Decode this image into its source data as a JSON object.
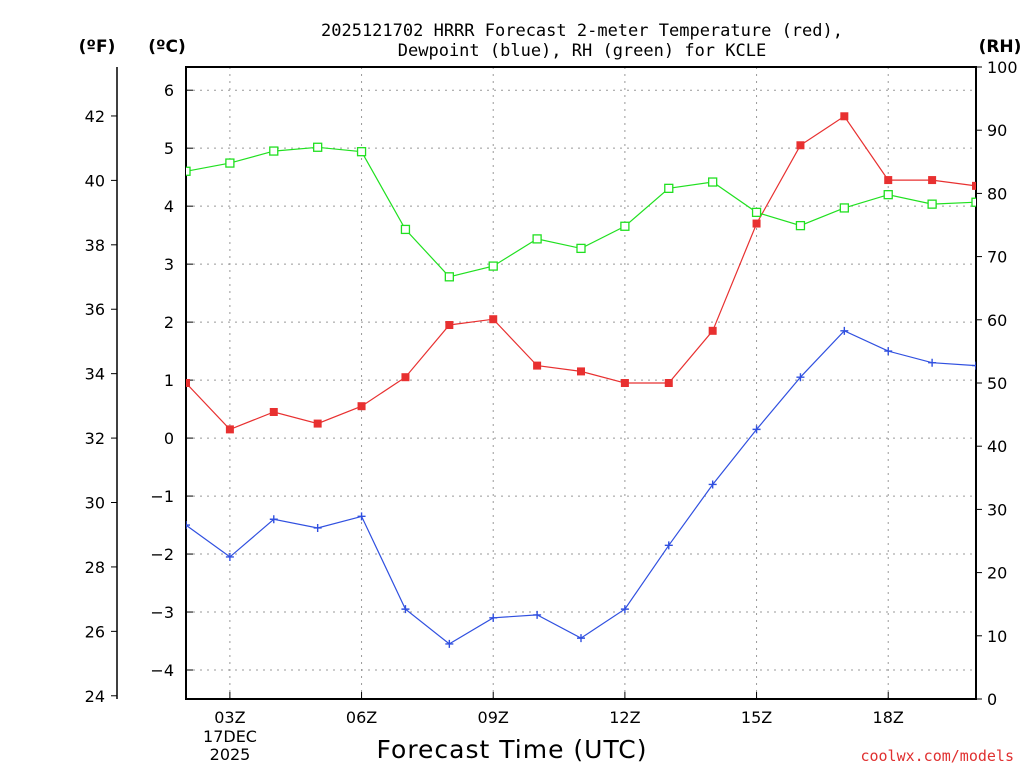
{
  "chart_data": {
    "type": "line",
    "title_line1": "2025121702 HRRR Forecast 2-meter Temperature (red),",
    "title_line2": "Dewpoint (blue), RH (green) for KCLE",
    "left_unit_f": "(ºF)",
    "left_unit_c": "(ºC)",
    "right_unit": "(RH)",
    "xlabel": "Forecast Time (UTC)",
    "credit": "coolwx.com/models",
    "date_label_1": "17DEC",
    "date_label_2": "2025",
    "x_range": [
      2,
      20
    ],
    "x_ticks": [
      3,
      6,
      9,
      12,
      15,
      18
    ],
    "x_tick_labels": [
      "03Z",
      "06Z",
      "09Z",
      "12Z",
      "15Z",
      "18Z"
    ],
    "celsius_range": [
      -4.5,
      6.4
    ],
    "celsius_ticks": [
      "6",
      "5",
      "4",
      "3",
      "2",
      "1",
      "0",
      "−1",
      "−2",
      "−3",
      "−4"
    ],
    "fahrenheit_ticks": [
      "42",
      "40",
      "38",
      "36",
      "34",
      "32",
      "30",
      "28",
      "26",
      "24"
    ],
    "rh_range": [
      0,
      100
    ],
    "rh_ticks": [
      "100",
      "90",
      "80",
      "70",
      "60",
      "50",
      "40",
      "30",
      "20",
      "10",
      "0"
    ],
    "hours": [
      2,
      3,
      4,
      5,
      6,
      7,
      8,
      9,
      10,
      11,
      12,
      13,
      14,
      15,
      16,
      17,
      18,
      19,
      20
    ],
    "series": [
      {
        "name": "2-meter Temperature",
        "unit": "C",
        "color": "#e83030",
        "marker": "filled-square",
        "values": [
          0.95,
          0.15,
          0.45,
          0.25,
          0.55,
          1.05,
          1.95,
          2.05,
          1.25,
          1.15,
          0.95,
          0.95,
          1.85,
          3.7,
          5.05,
          5.55,
          4.45,
          4.45,
          4.35
        ]
      },
      {
        "name": "Dewpoint",
        "unit": "C",
        "color": "#3050e0",
        "marker": "plus",
        "values": [
          -1.5,
          -2.05,
          -1.4,
          -1.55,
          -1.35,
          -2.95,
          -3.55,
          -3.1,
          -3.05,
          -3.45,
          -2.95,
          -1.85,
          -0.8,
          0.15,
          1.05,
          1.85,
          1.5,
          1.3,
          1.25
        ]
      },
      {
        "name": "RH",
        "unit": "%",
        "color": "#20e020",
        "marker": "open-square",
        "values": [
          83.5,
          84.8,
          86.7,
          87.3,
          86.6,
          74.3,
          66.8,
          68.5,
          72.8,
          71.3,
          74.8,
          80.8,
          81.8,
          77.0,
          74.9,
          77.7,
          79.8,
          78.3,
          78.6
        ]
      }
    ]
  }
}
